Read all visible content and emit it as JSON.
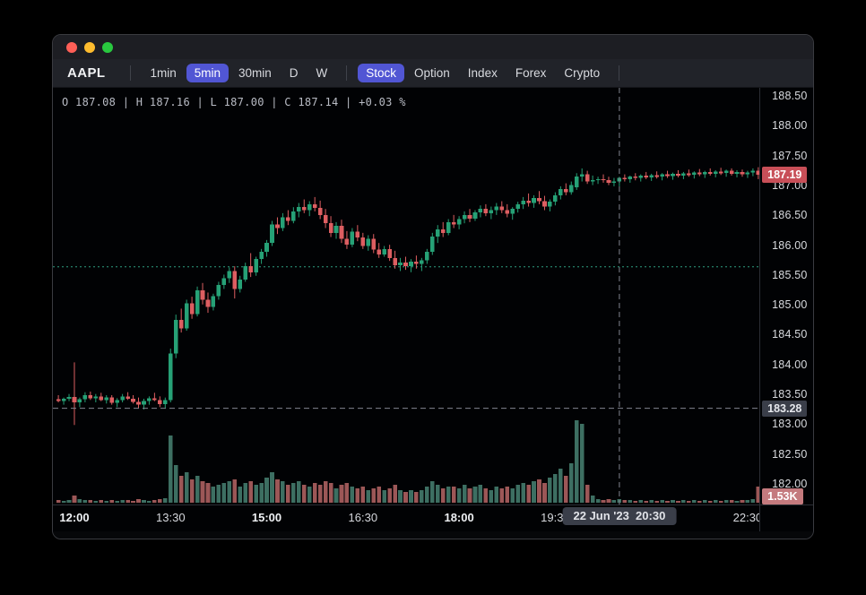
{
  "window": {
    "symbol": "AAPL",
    "traffic_lights": [
      "close",
      "minimize",
      "zoom"
    ],
    "timeframes": [
      {
        "label": "1min",
        "selected": false
      },
      {
        "label": "5min",
        "selected": true
      },
      {
        "label": "30min",
        "selected": false
      },
      {
        "label": "D",
        "selected": false
      },
      {
        "label": "W",
        "selected": false
      }
    ],
    "markets": [
      {
        "label": "Stock",
        "selected": true
      },
      {
        "label": "Option",
        "selected": false
      },
      {
        "label": "Index",
        "selected": false
      },
      {
        "label": "Forex",
        "selected": false
      },
      {
        "label": "Crypto",
        "selected": false
      }
    ]
  },
  "ohlc_readout": {
    "text": "O 187.08 | H 187.16 | L 187.00 | C 187.14 | +0.03 %"
  },
  "axis": {
    "price_ticks": [
      "188.50",
      "188.00",
      "187.50",
      "187.00",
      "186.50",
      "186.00",
      "185.50",
      "185.00",
      "184.50",
      "184.00",
      "183.50",
      "183.00",
      "182.50",
      "182.00"
    ],
    "time_ticks": [
      {
        "label": "12:00",
        "bold": true,
        "index": 3
      },
      {
        "label": "13:30",
        "bold": false,
        "index": 21
      },
      {
        "label": "15:00",
        "bold": true,
        "index": 39
      },
      {
        "label": "16:30",
        "bold": false,
        "index": 57
      },
      {
        "label": "18:00",
        "bold": true,
        "index": 75
      },
      {
        "label": "19:30",
        "bold": false,
        "index": 93
      },
      {
        "label": "21:00",
        "bold": true,
        "index": 111
      },
      {
        "label": "22:30",
        "bold": false,
        "index": 129
      }
    ],
    "last_price_label": "187.19",
    "crosshair_price_label": "183.28",
    "volume_label": "1.53K",
    "crosshair_time_label": "22 Jun '23  20:30"
  },
  "colors": {
    "candle_up": "#26a176",
    "candle_down": "#dd5e61",
    "volume_up": "#3d6f62",
    "volume_down": "#9c5757",
    "prev_close_line": "#2f9e82",
    "crosshair": "#82858f",
    "accent_pill": "#5156d4",
    "last_price_badge": "#c84f58",
    "volume_badge": "#c47a7e",
    "crosshair_badge": "#3a3e49"
  },
  "chart_data": {
    "type": "candlestick",
    "symbol": "AAPL",
    "interval": "5min",
    "first_candle_time": "11:45",
    "step_minutes": 5,
    "price_axis_range": [
      181.7,
      188.65
    ],
    "columns": [
      "open",
      "high",
      "low",
      "close",
      "volume_rel"
    ],
    "overlays": {
      "prev_close_dotted_line": 185.65,
      "last_price": 187.19,
      "crosshair": {
        "time": "20:30",
        "index": 105,
        "price": 183.28,
        "volume_axis_value": "1.53K"
      }
    },
    "candles": [
      [
        183.43,
        183.5,
        183.38,
        183.4,
        3
      ],
      [
        183.4,
        183.46,
        183.34,
        183.44,
        2
      ],
      [
        183.44,
        183.52,
        183.4,
        183.47,
        3
      ],
      [
        183.47,
        184.05,
        183.0,
        183.38,
        8
      ],
      [
        183.38,
        183.46,
        183.3,
        183.43,
        4
      ],
      [
        183.43,
        183.55,
        183.38,
        183.5,
        3
      ],
      [
        183.5,
        183.56,
        183.42,
        183.45,
        3
      ],
      [
        183.45,
        183.52,
        183.38,
        183.48,
        2
      ],
      [
        183.48,
        183.54,
        183.4,
        183.42,
        3
      ],
      [
        183.42,
        183.5,
        183.36,
        183.46,
        2
      ],
      [
        183.46,
        183.5,
        183.34,
        183.37,
        3
      ],
      [
        183.37,
        183.45,
        183.3,
        183.42,
        2
      ],
      [
        183.42,
        183.52,
        183.38,
        183.48,
        3
      ],
      [
        183.48,
        183.55,
        183.42,
        183.44,
        3
      ],
      [
        183.44,
        183.5,
        183.36,
        183.39,
        2
      ],
      [
        183.39,
        183.46,
        183.28,
        183.34,
        4
      ],
      [
        183.34,
        183.44,
        183.26,
        183.4,
        3
      ],
      [
        183.4,
        183.48,
        183.34,
        183.45,
        2
      ],
      [
        183.45,
        183.54,
        183.4,
        183.42,
        3
      ],
      [
        183.42,
        183.48,
        183.3,
        183.35,
        4
      ],
      [
        183.35,
        183.46,
        183.28,
        183.42,
        5
      ],
      [
        183.42,
        184.28,
        183.38,
        184.2,
        75
      ],
      [
        184.2,
        184.85,
        184.12,
        184.76,
        42
      ],
      [
        184.76,
        184.95,
        184.55,
        184.62,
        30
      ],
      [
        184.62,
        185.1,
        184.58,
        185.04,
        34
      ],
      [
        185.04,
        185.15,
        184.78,
        184.86,
        26
      ],
      [
        184.86,
        185.32,
        184.82,
        185.26,
        30
      ],
      [
        185.26,
        185.38,
        185.02,
        185.1,
        24
      ],
      [
        185.1,
        185.22,
        184.88,
        184.98,
        22
      ],
      [
        184.98,
        185.2,
        184.92,
        185.16,
        18
      ],
      [
        185.16,
        185.4,
        185.1,
        185.35,
        20
      ],
      [
        185.35,
        185.52,
        185.28,
        185.46,
        22
      ],
      [
        185.46,
        185.64,
        185.38,
        185.58,
        24
      ],
      [
        185.58,
        185.66,
        185.12,
        185.28,
        26
      ],
      [
        185.28,
        185.5,
        185.22,
        185.44,
        18
      ],
      [
        185.44,
        185.72,
        185.4,
        185.66,
        22
      ],
      [
        185.66,
        185.88,
        185.48,
        185.56,
        24
      ],
      [
        185.56,
        185.82,
        185.5,
        185.78,
        20
      ],
      [
        185.78,
        185.95,
        185.7,
        185.9,
        22
      ],
      [
        185.9,
        186.1,
        185.82,
        186.05,
        28
      ],
      [
        186.05,
        186.42,
        186.0,
        186.36,
        34
      ],
      [
        186.36,
        186.48,
        186.2,
        186.3,
        26
      ],
      [
        186.3,
        186.55,
        186.25,
        186.48,
        24
      ],
      [
        186.48,
        186.6,
        186.35,
        186.42,
        20
      ],
      [
        186.42,
        186.65,
        186.38,
        186.58,
        22
      ],
      [
        186.58,
        186.72,
        186.48,
        186.65,
        24
      ],
      [
        186.65,
        186.78,
        186.55,
        186.6,
        20
      ],
      [
        186.6,
        186.75,
        186.5,
        186.7,
        18
      ],
      [
        186.7,
        186.82,
        186.58,
        186.64,
        22
      ],
      [
        186.64,
        186.76,
        186.45,
        186.52,
        20
      ],
      [
        186.52,
        186.62,
        186.3,
        186.38,
        24
      ],
      [
        186.38,
        186.5,
        186.15,
        186.22,
        22
      ],
      [
        186.22,
        186.4,
        186.12,
        186.34,
        16
      ],
      [
        186.34,
        186.44,
        186.05,
        186.12,
        20
      ],
      [
        186.12,
        186.25,
        185.95,
        186.02,
        22
      ],
      [
        186.02,
        186.3,
        185.98,
        186.24,
        18
      ],
      [
        186.24,
        186.35,
        186.08,
        186.14,
        16
      ],
      [
        186.14,
        186.22,
        185.95,
        186.0,
        18
      ],
      [
        186.0,
        186.18,
        185.92,
        186.12,
        14
      ],
      [
        186.12,
        186.2,
        185.88,
        185.94,
        16
      ],
      [
        185.94,
        186.05,
        185.8,
        185.86,
        18
      ],
      [
        185.86,
        186.0,
        185.82,
        185.95,
        14
      ],
      [
        185.95,
        186.02,
        185.75,
        185.8,
        16
      ],
      [
        185.8,
        185.92,
        185.62,
        185.68,
        20
      ],
      [
        185.68,
        185.8,
        185.58,
        185.72,
        14
      ],
      [
        185.72,
        185.82,
        185.6,
        185.66,
        12
      ],
      [
        185.66,
        185.78,
        185.56,
        185.74,
        14
      ],
      [
        185.74,
        185.84,
        185.62,
        185.7,
        12
      ],
      [
        185.7,
        185.8,
        185.58,
        185.76,
        14
      ],
      [
        185.76,
        185.95,
        185.7,
        185.9,
        18
      ],
      [
        185.9,
        186.22,
        185.85,
        186.16,
        24
      ],
      [
        186.16,
        186.35,
        186.05,
        186.28,
        20
      ],
      [
        186.28,
        186.4,
        186.15,
        186.22,
        16
      ],
      [
        186.22,
        186.45,
        186.18,
        186.4,
        18
      ],
      [
        186.4,
        186.52,
        186.3,
        186.36,
        18
      ],
      [
        186.36,
        186.5,
        186.28,
        186.45,
        16
      ],
      [
        186.45,
        186.58,
        186.38,
        186.52,
        20
      ],
      [
        186.52,
        186.62,
        186.4,
        186.46,
        16
      ],
      [
        186.46,
        186.6,
        186.42,
        186.56,
        18
      ],
      [
        186.56,
        186.68,
        186.48,
        186.62,
        20
      ],
      [
        186.62,
        186.7,
        186.5,
        186.55,
        16
      ],
      [
        186.55,
        186.66,
        186.45,
        186.6,
        14
      ],
      [
        186.6,
        186.72,
        186.52,
        186.66,
        18
      ],
      [
        186.66,
        186.75,
        186.55,
        186.6,
        16
      ],
      [
        186.6,
        186.7,
        186.48,
        186.54,
        18
      ],
      [
        186.54,
        186.65,
        186.44,
        186.62,
        16
      ],
      [
        186.62,
        186.74,
        186.56,
        186.7,
        20
      ],
      [
        186.7,
        186.82,
        186.62,
        186.76,
        22
      ],
      [
        186.76,
        186.88,
        186.66,
        186.72,
        20
      ],
      [
        186.72,
        186.85,
        186.64,
        186.8,
        24
      ],
      [
        186.8,
        186.92,
        186.7,
        186.75,
        26
      ],
      [
        186.75,
        186.84,
        186.6,
        186.66,
        22
      ],
      [
        186.66,
        186.78,
        186.58,
        186.74,
        28
      ],
      [
        186.74,
        186.9,
        186.68,
        186.85,
        32
      ],
      [
        186.85,
        187.0,
        186.78,
        186.95,
        38
      ],
      [
        186.95,
        187.05,
        186.85,
        186.9,
        30
      ],
      [
        186.9,
        187.08,
        186.86,
        187.02,
        44
      ],
      [
        186.98,
        187.22,
        186.94,
        187.16,
        92
      ],
      [
        187.16,
        187.3,
        187.08,
        187.2,
        88
      ],
      [
        187.2,
        187.26,
        187.04,
        187.08,
        20
      ],
      [
        187.08,
        187.18,
        187.02,
        187.1,
        8
      ],
      [
        187.1,
        187.16,
        187.04,
        187.12,
        4
      ],
      [
        187.12,
        187.2,
        187.06,
        187.1,
        3
      ],
      [
        187.1,
        187.16,
        187.02,
        187.06,
        4
      ],
      [
        187.06,
        187.14,
        187.0,
        187.08,
        3
      ],
      [
        187.08,
        187.16,
        187.0,
        187.14,
        4
      ],
      [
        187.14,
        187.2,
        187.08,
        187.12,
        3
      ],
      [
        187.12,
        187.18,
        187.06,
        187.16,
        3
      ],
      [
        187.16,
        187.22,
        187.1,
        187.14,
        2
      ],
      [
        187.14,
        187.2,
        187.08,
        187.18,
        3
      ],
      [
        187.18,
        187.24,
        187.12,
        187.15,
        2
      ],
      [
        187.15,
        187.21,
        187.09,
        187.19,
        3
      ],
      [
        187.19,
        187.25,
        187.13,
        187.16,
        2
      ],
      [
        187.16,
        187.22,
        187.1,
        187.2,
        3
      ],
      [
        187.2,
        187.26,
        187.14,
        187.17,
        2
      ],
      [
        187.17,
        187.23,
        187.11,
        187.21,
        3
      ],
      [
        187.21,
        187.27,
        187.15,
        187.18,
        2
      ],
      [
        187.18,
        187.24,
        187.12,
        187.22,
        3
      ],
      [
        187.22,
        187.28,
        187.16,
        187.19,
        2
      ],
      [
        187.19,
        187.25,
        187.13,
        187.23,
        3
      ],
      [
        187.23,
        187.29,
        187.17,
        187.2,
        2
      ],
      [
        187.2,
        187.26,
        187.14,
        187.24,
        3
      ],
      [
        187.24,
        187.3,
        187.18,
        187.21,
        2
      ],
      [
        187.21,
        187.27,
        187.15,
        187.25,
        3
      ],
      [
        187.25,
        187.31,
        187.19,
        187.22,
        2
      ],
      [
        187.22,
        187.28,
        187.16,
        187.26,
        3
      ],
      [
        187.26,
        187.3,
        187.18,
        187.21,
        3
      ],
      [
        187.21,
        187.27,
        187.15,
        187.24,
        2
      ],
      [
        187.24,
        187.28,
        187.16,
        187.2,
        3
      ],
      [
        187.2,
        187.26,
        187.14,
        187.23,
        3
      ],
      [
        187.23,
        187.3,
        187.17,
        187.26,
        4
      ],
      [
        187.26,
        187.32,
        187.12,
        187.19,
        18
      ]
    ]
  }
}
